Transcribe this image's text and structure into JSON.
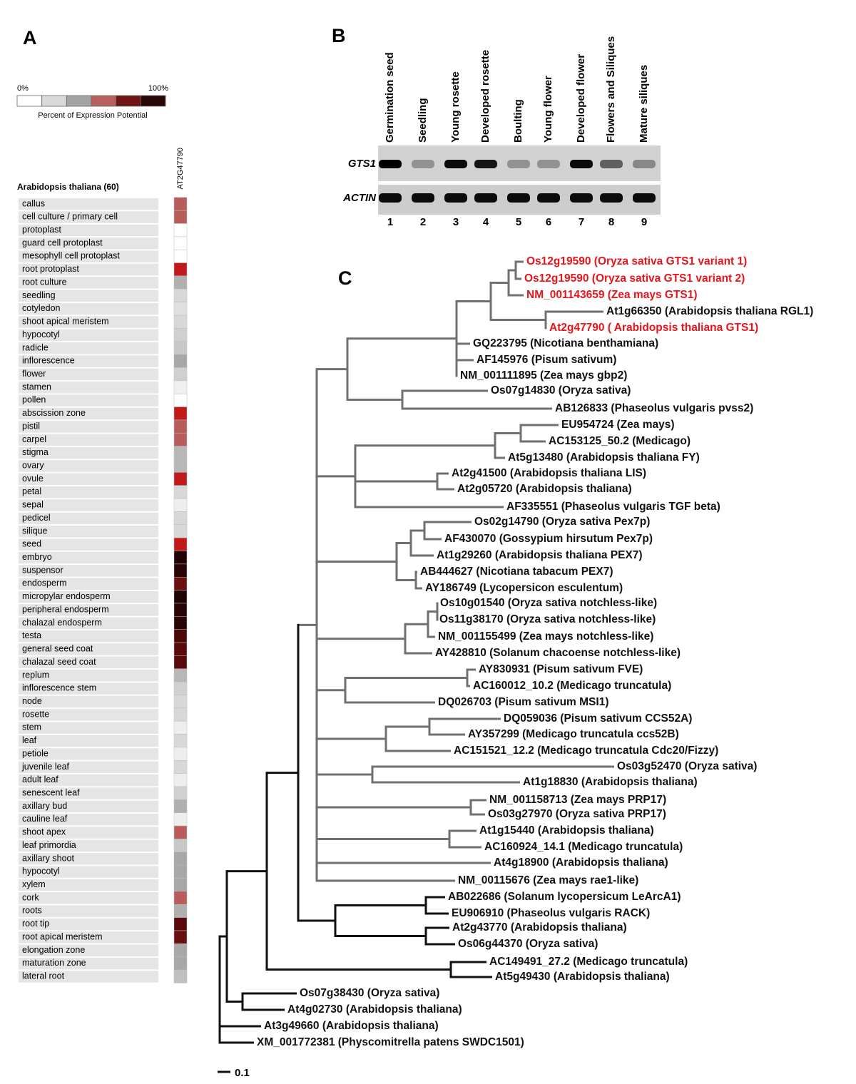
{
  "panel_a": {
    "label": "A",
    "legend": {
      "min": "0%",
      "max": "100%",
      "title": "Percent of Expression Potential",
      "colors": [
        "#ffffff",
        "#d9d9d9",
        "#a3a3a3",
        "#b85f5f",
        "#701515",
        "#2a0808"
      ]
    },
    "gene": "AT2G47790",
    "group": "Arabidopsis thaliana (60)",
    "tissues": [
      {
        "name": "callus",
        "color": "#b85c5c"
      },
      {
        "name": "cell culture / primary cell",
        "color": "#b85c5c"
      },
      {
        "name": "protoplast",
        "color": "#ffffff"
      },
      {
        "name": "guard cell protoplast",
        "color": "#ffffff"
      },
      {
        "name": "mesophyll cell protoplast",
        "color": "#ffffff"
      },
      {
        "name": "root protoplast",
        "color": "#c01a1a"
      },
      {
        "name": "root culture",
        "color": "#b0b0b0"
      },
      {
        "name": "seedling",
        "color": "#d8d8d8"
      },
      {
        "name": "cotyledon",
        "color": "#e0e0e0"
      },
      {
        "name": "shoot apical meristem",
        "color": "#d8d8d8"
      },
      {
        "name": "hypocotyl",
        "color": "#d0d0d0"
      },
      {
        "name": "radicle",
        "color": "#c8c8c8"
      },
      {
        "name": "inflorescence",
        "color": "#a8a8a8"
      },
      {
        "name": "flower",
        "color": "#d0d0d0"
      },
      {
        "name": "stamen",
        "color": "#f0f0f0"
      },
      {
        "name": "pollen",
        "color": "#ffffff"
      },
      {
        "name": "abscission zone",
        "color": "#c01a1a"
      },
      {
        "name": "pistil",
        "color": "#b85c5c"
      },
      {
        "name": "carpel",
        "color": "#b85c5c"
      },
      {
        "name": "stigma",
        "color": "#b8b8b8"
      },
      {
        "name": "ovary",
        "color": "#b8b8b8"
      },
      {
        "name": "ovule",
        "color": "#c01a1a"
      },
      {
        "name": "petal",
        "color": "#d8d8d8"
      },
      {
        "name": "sepal",
        "color": "#eeeeee"
      },
      {
        "name": "pedicel",
        "color": "#d8d8d8"
      },
      {
        "name": "silique",
        "color": "#d8d8d8"
      },
      {
        "name": "seed",
        "color": "#c01a1a"
      },
      {
        "name": "embryo",
        "color": "#200404"
      },
      {
        "name": "suspensor",
        "color": "#2a0505"
      },
      {
        "name": "endosperm",
        "color": "#6b1010"
      },
      {
        "name": "micropylar endosperm",
        "color": "#200404"
      },
      {
        "name": "peripheral endosperm",
        "color": "#2a0505"
      },
      {
        "name": "chalazal endosperm",
        "color": "#2a0505"
      },
      {
        "name": "testa",
        "color": "#4a0808"
      },
      {
        "name": "general seed coat",
        "color": "#5a0a0a"
      },
      {
        "name": "chalazal seed coat",
        "color": "#5a0a0a"
      },
      {
        "name": "replum",
        "color": "#b8b8b8"
      },
      {
        "name": "inflorescence stem",
        "color": "#d0d0d0"
      },
      {
        "name": "node",
        "color": "#d8d8d8"
      },
      {
        "name": "rosette",
        "color": "#d8d8d8"
      },
      {
        "name": "stem",
        "color": "#eeeeee"
      },
      {
        "name": "leaf",
        "color": "#d8d8d8"
      },
      {
        "name": "petiole",
        "color": "#eeeeee"
      },
      {
        "name": "juvenile leaf",
        "color": "#d8d8d8"
      },
      {
        "name": "adult leaf",
        "color": "#eeeeee"
      },
      {
        "name": "senescent leaf",
        "color": "#d0d0d0"
      },
      {
        "name": "axillary bud",
        "color": "#b0b0b0"
      },
      {
        "name": "cauline leaf",
        "color": "#eeeeee"
      },
      {
        "name": "shoot apex",
        "color": "#b85c5c"
      },
      {
        "name": "leaf primordia",
        "color": "#c8c8c8"
      },
      {
        "name": "axillary shoot",
        "color": "#a8a8a8"
      },
      {
        "name": "hypocotyl",
        "color": "#a8a8a8"
      },
      {
        "name": "xylem",
        "color": "#a8a8a8"
      },
      {
        "name": "cork",
        "color": "#b85c5c"
      },
      {
        "name": "roots",
        "color": "#b0b0b0"
      },
      {
        "name": "root tip",
        "color": "#5a0a0a"
      },
      {
        "name": "root apical meristem",
        "color": "#6b1010"
      },
      {
        "name": "elongation zone",
        "color": "#a8a8a8"
      },
      {
        "name": "maturation zone",
        "color": "#a8a8a8"
      },
      {
        "name": "lateral root",
        "color": "#c0c0c0"
      }
    ]
  },
  "panel_b": {
    "label": "B",
    "lanes": [
      "Germination seed",
      "Seedling",
      "Young rosette",
      "Developed rosette",
      "Boulting",
      "Young flower",
      "Developed flower",
      "Flowers and Siliques",
      "Mature siliques"
    ],
    "lane_numbers": [
      1,
      2,
      3,
      4,
      5,
      6,
      7,
      8,
      9
    ],
    "genes": [
      "GTS1",
      "ACTIN"
    ]
  },
  "panel_c": {
    "label": "C",
    "leaves": [
      {
        "label": "Os12g19590 (Oryza sativa GTS1 variant 1)",
        "color": "#e8141a"
      },
      {
        "label": "Os12g19590 (Oryza sativa GTS1 variant 2)",
        "color": "#e8141a"
      },
      {
        "label": "NM_001143659 (Zea mays GTS1)",
        "color": "#e8141a"
      },
      {
        "label": "At1g66350 (Arabidopsis thaliana RGL1)",
        "color": "#111111"
      },
      {
        "label": "At2g47790 ( Arabidopsis thaliana GTS1)",
        "color": "#e8141a"
      },
      {
        "label": "GQ223795 (Nicotiana benthamiana)",
        "color": "#111111"
      },
      {
        "label": "AF145976 (Pisum sativum)",
        "color": "#111111"
      },
      {
        "label": "NM_001111895 (Zea mays gbp2)",
        "color": "#111111"
      },
      {
        "label": "Os07g14830 (Oryza sativa)",
        "color": "#111111"
      },
      {
        "label": "AB126833 (Phaseolus vulgaris pvss2)",
        "color": "#111111"
      },
      {
        "label": "EU954724 (Zea mays)",
        "color": "#111111"
      },
      {
        "label": "AC153125_50.2 (Medicago)",
        "color": "#111111"
      },
      {
        "label": "At5g13480 (Arabidopsis thaliana FY)",
        "color": "#111111"
      },
      {
        "label": "At2g41500 (Arabidopsis thaliana LIS)",
        "color": "#111111"
      },
      {
        "label": "At2g05720 (Arabidopsis thaliana)",
        "color": "#111111"
      },
      {
        "label": "AF335551 (Phaseolus vulgaris TGF beta)",
        "color": "#111111"
      },
      {
        "label": "Os02g14790 (Oryza sativa Pex7p)",
        "color": "#111111"
      },
      {
        "label": "AF430070 (Gossypium hirsutum Pex7p)",
        "color": "#111111"
      },
      {
        "label": "At1g29260 (Arabidopsis thaliana PEX7)",
        "color": "#111111"
      },
      {
        "label": "AB444627 (Nicotiana tabacum PEX7)",
        "color": "#111111"
      },
      {
        "label": "AY186749 (Lycopersicon esculentum)",
        "color": "#111111"
      },
      {
        "label": "Os10g01540 (Oryza sativa notchless-like)",
        "color": "#111111"
      },
      {
        "label": "Os11g38170 (Oryza sativa notchless-like)",
        "color": "#111111"
      },
      {
        "label": "NM_001155499 (Zea mays notchless-like)",
        "color": "#111111"
      },
      {
        "label": "AY428810 (Solanum chacoense notchless-like)",
        "color": "#111111"
      },
      {
        "label": "AY830931 (Pisum sativum FVE)",
        "color": "#111111"
      },
      {
        "label": "AC160012_10.2 (Medicago truncatula)",
        "color": "#111111"
      },
      {
        "label": "DQ026703 (Pisum sativum MSI1)",
        "color": "#111111"
      },
      {
        "label": "DQ059036 (Pisum sativum CCS52A)",
        "color": "#111111"
      },
      {
        "label": "AY357299 (Medicago truncatula ccs52B)",
        "color": "#111111"
      },
      {
        "label": "AC151521_12.2 (Medicago truncatula Cdc20/Fizzy)",
        "color": "#111111"
      },
      {
        "label": "Os03g52470  (Oryza sativa)",
        "color": "#111111"
      },
      {
        "label": "At1g18830 (Arabidopsis thaliana)",
        "color": "#111111"
      },
      {
        "label": "NM_001158713 (Zea mays PRP17)",
        "color": "#111111"
      },
      {
        "label": "Os03g27970 (Oryza sativa PRP17)",
        "color": "#111111"
      },
      {
        "label": "At1g15440  (Arabidopsis thaliana)",
        "color": "#111111"
      },
      {
        "label": "AC160924_14.1 (Medicago truncatula)",
        "color": "#111111"
      },
      {
        "label": "At4g18900 (Arabidopsis thaliana)",
        "color": "#111111"
      },
      {
        "label": "NM_00115676 (Zea mays rae1-like)",
        "color": "#111111"
      },
      {
        "label": "AB022686 (Solanum lycopersicum LeArcA1)",
        "color": "#111111"
      },
      {
        "label": "EU906910 (Phaseolus vulgaris RACK)",
        "color": "#111111"
      },
      {
        "label": "At2g43770 (Arabidopsis thaliana)",
        "color": "#111111"
      },
      {
        "label": "Os06g44370 (Oryza sativa)",
        "color": "#111111"
      },
      {
        "label": "AC149491_27.2 (Medicago truncatula)",
        "color": "#111111"
      },
      {
        "label": "At5g49430 (Arabidopsis thaliana)",
        "color": "#111111"
      },
      {
        "label": "Os07g38430 (Oryza sativa)",
        "color": "#111111"
      },
      {
        "label": "At4g02730 (Arabidopsis thaliana)",
        "color": "#111111"
      },
      {
        "label": "At3g49660 (Arabidopsis thaliana)",
        "color": "#111111"
      },
      {
        "label": "XM_001772381 (Physcomitrella patens SWDC1501)",
        "color": "#111111"
      }
    ],
    "scale_bar": "0.1"
  }
}
